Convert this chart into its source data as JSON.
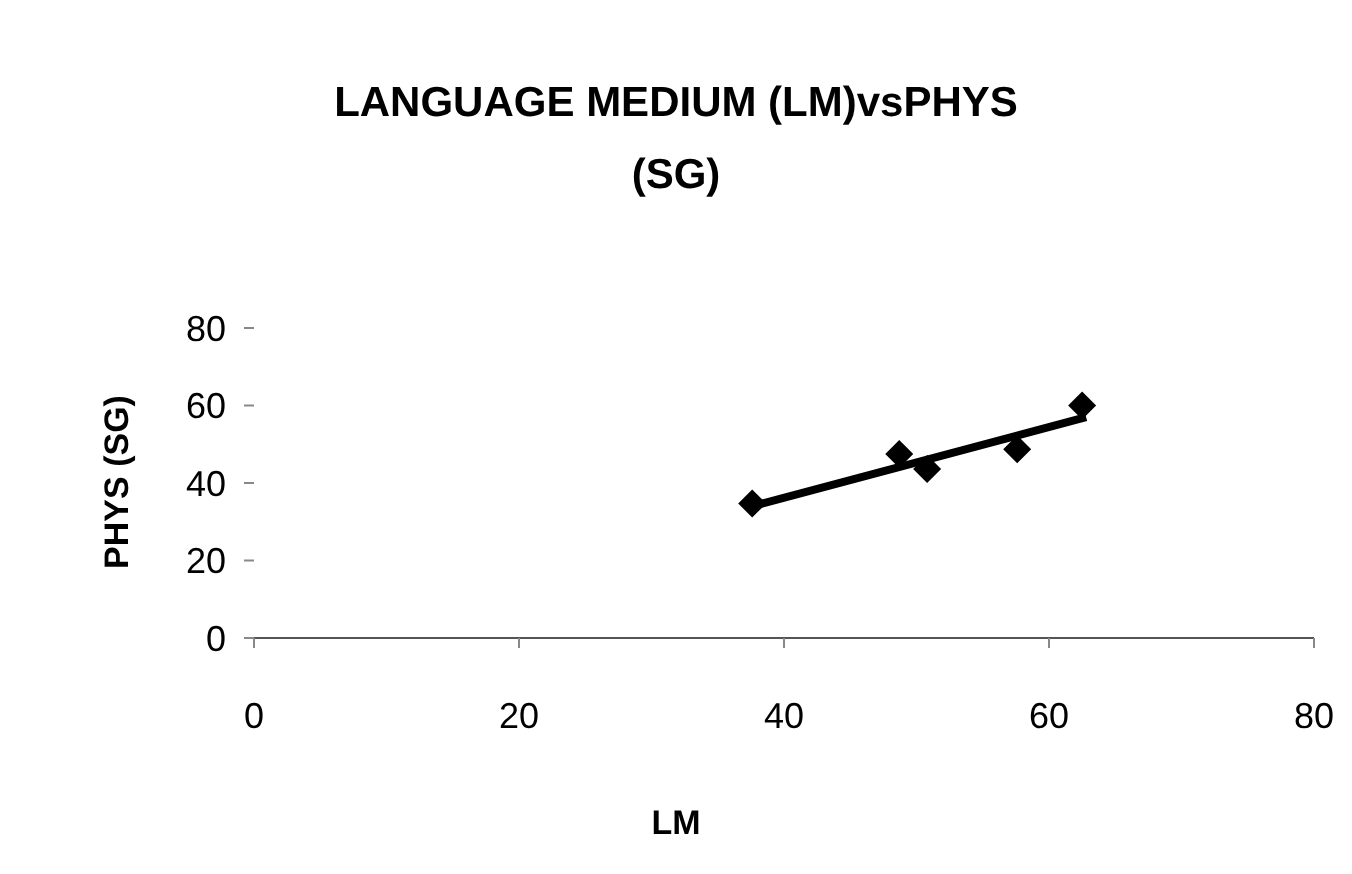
{
  "chart_data": {
    "type": "scatter",
    "title": "LANGUAGE MEDIUM (LM)vsPHYS (SG)",
    "xlabel": "LM",
    "ylabel": "PHYS (SG)",
    "xlim": [
      0,
      80
    ],
    "ylim": [
      0,
      80
    ],
    "xticks": [
      0,
      20,
      40,
      60,
      80
    ],
    "yticks": [
      0,
      20,
      40,
      60,
      80
    ],
    "series": [
      {
        "marker": "diamond",
        "color": "#000000",
        "x": [
          37.6,
          48.7,
          50.8,
          57.6,
          62.5
        ],
        "values": [
          34.7,
          47.5,
          43.6,
          48.7,
          60
        ]
      },
      {
        "type": "line",
        "color": "#000000",
        "x": [
          37.9,
          62.8
        ],
        "values": [
          34.3,
          57
        ]
      }
    ]
  }
}
